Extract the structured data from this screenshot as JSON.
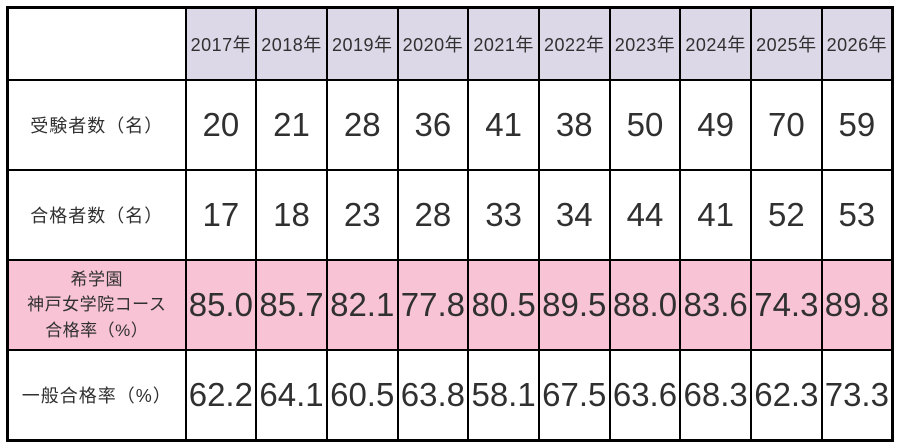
{
  "colors": {
    "header_bg": "#dcd8e8",
    "highlight_bg": "#f7c3d5",
    "border_color": "#000000",
    "text_color": "#303030",
    "bg": "#ffffff"
  },
  "table": {
    "corner": "",
    "years": [
      "2017年",
      "2018年",
      "2019年",
      "2020年",
      "2021年",
      "2022年",
      "2023年",
      "2024年",
      "2025年",
      "2026年"
    ],
    "rows": [
      {
        "label": "受験者数（名）",
        "values": [
          "20",
          "21",
          "28",
          "36",
          "41",
          "38",
          "50",
          "49",
          "70",
          "59"
        ]
      },
      {
        "label": "合格者数（名）",
        "values": [
          "17",
          "18",
          "23",
          "28",
          "33",
          "34",
          "44",
          "41",
          "52",
          "53"
        ]
      },
      {
        "label": "希学園\n神戸女学院コース\n合格率（%）",
        "values": [
          "85.0",
          "85.7",
          "82.1",
          "77.8",
          "80.5",
          "89.5",
          "88.0",
          "83.6",
          "74.3",
          "89.8"
        ]
      },
      {
        "label": "一般合格率（%）",
        "values": [
          "62.2",
          "64.1",
          "60.5",
          "63.8",
          "58.1",
          "67.5",
          "63.6",
          "68.3",
          "62.3",
          "73.3"
        ]
      }
    ]
  },
  "chart_data": {
    "type": "table",
    "categories": [
      "2017年",
      "2018年",
      "2019年",
      "2020年",
      "2021年",
      "2022年",
      "2023年",
      "2024年",
      "2025年",
      "2026年"
    ],
    "series": [
      {
        "name": "受験者数（名）",
        "values": [
          20,
          21,
          28,
          36,
          41,
          38,
          50,
          49,
          70,
          59
        ]
      },
      {
        "name": "合格者数（名）",
        "values": [
          17,
          18,
          23,
          28,
          33,
          34,
          44,
          41,
          52,
          53
        ]
      },
      {
        "name": "希学園 神戸女学院コース 合格率（%）",
        "values": [
          85.0,
          85.7,
          82.1,
          77.8,
          80.5,
          89.5,
          88.0,
          83.6,
          74.3,
          89.8
        ]
      },
      {
        "name": "一般合格率（%）",
        "values": [
          62.2,
          64.1,
          60.5,
          63.8,
          58.1,
          67.5,
          63.6,
          68.3,
          62.3,
          73.3
        ]
      }
    ],
    "title": "",
    "xlabel": "",
    "ylabel": "",
    "legend_position": "none",
    "grid": true,
    "highlighted_series": "希学園 神戸女学院コース 合格率（%）"
  }
}
